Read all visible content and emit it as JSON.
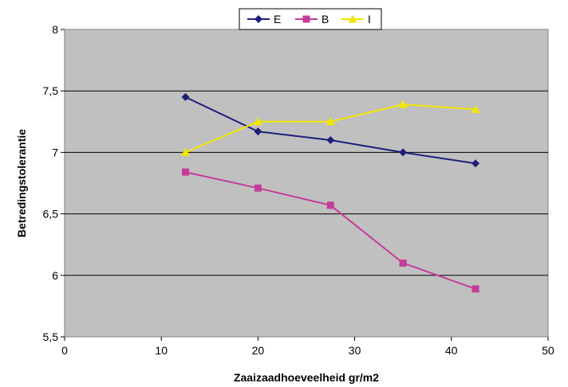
{
  "chart_data": {
    "type": "line",
    "xlabel": "Zaaizaadhoeveelheid gr/m2",
    "ylabel": "Betredingstolerantie",
    "xlim": [
      0,
      50
    ],
    "ylim": [
      5.5,
      8
    ],
    "x_ticks": [
      "0",
      "10",
      "20",
      "30",
      "40",
      "50"
    ],
    "y_ticks": [
      "5,5",
      "6",
      "6,5",
      "7",
      "7,5",
      "8"
    ],
    "x_tick_values": [
      0,
      10,
      20,
      30,
      40,
      50
    ],
    "y_tick_values": [
      5.5,
      6,
      6.5,
      7,
      7.5,
      8
    ],
    "grid": "horizontal",
    "legend_position": "top",
    "plot_background": "#c0c0c0",
    "series": [
      {
        "name": "E",
        "color": "#1f1f7a",
        "marker": "diamond",
        "x": [
          12.5,
          20,
          27.5,
          35,
          42.5
        ],
        "y": [
          7.45,
          7.17,
          7.1,
          7.0,
          6.91
        ]
      },
      {
        "name": "B",
        "color": "#c43c9a",
        "marker": "square",
        "x": [
          12.5,
          20,
          27.5,
          35,
          42.5
        ],
        "y": [
          6.84,
          6.71,
          6.57,
          6.1,
          5.89
        ]
      },
      {
        "name": "I",
        "color": "#f2e600",
        "marker": "triangle",
        "x": [
          12.5,
          20,
          27.5,
          35,
          42.5
        ],
        "y": [
          7.0,
          7.25,
          7.25,
          7.39,
          7.35
        ]
      }
    ]
  }
}
